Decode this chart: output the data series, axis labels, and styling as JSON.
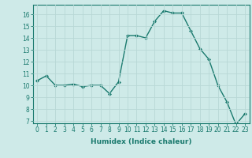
{
  "x": [
    0,
    1,
    2,
    3,
    4,
    5,
    6,
    7,
    8,
    9,
    10,
    11,
    12,
    13,
    14,
    15,
    16,
    17,
    18,
    19,
    20,
    21,
    22,
    23
  ],
  "y": [
    10.4,
    10.8,
    10.0,
    10.0,
    10.1,
    9.9,
    10.0,
    10.0,
    9.3,
    10.3,
    14.2,
    14.2,
    14.0,
    15.4,
    16.3,
    16.1,
    16.1,
    14.6,
    13.1,
    12.2,
    10.0,
    8.6,
    6.7,
    7.6
  ],
  "line_color": "#1a7a6e",
  "marker": "D",
  "marker_size": 2.0,
  "bg_color": "#ceeae8",
  "grid_color": "#b8d8d6",
  "xlabel": "Humidex (Indice chaleur)",
  "xlim": [
    -0.5,
    23.5
  ],
  "ylim": [
    6.8,
    16.8
  ],
  "yticks": [
    7,
    8,
    9,
    10,
    11,
    12,
    13,
    14,
    15,
    16
  ],
  "xticks": [
    0,
    1,
    2,
    3,
    4,
    5,
    6,
    7,
    8,
    9,
    10,
    11,
    12,
    13,
    14,
    15,
    16,
    17,
    18,
    19,
    20,
    21,
    22,
    23
  ],
  "xlabel_fontsize": 6.5,
  "tick_fontsize": 5.5,
  "line_width": 1.0
}
